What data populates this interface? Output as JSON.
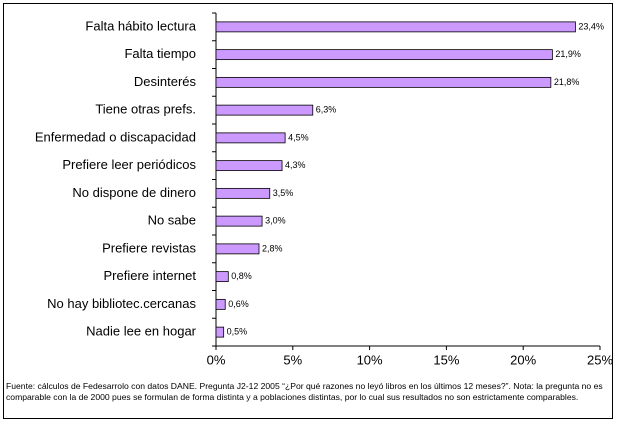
{
  "chart_data": {
    "type": "bar",
    "orientation": "horizontal",
    "categories": [
      "Falta hábito lectura",
      "Falta tiempo",
      "Desinterés",
      "Tiene otras prefs.",
      "Enfermedad o discapacidad",
      "Prefiere leer periódicos",
      "No dispone de dinero",
      "No sabe",
      "Prefiere revistas",
      "Prefiere internet",
      "No hay bibliotec.cercanas",
      "Nadie lee en hogar"
    ],
    "values": [
      23.4,
      21.9,
      21.8,
      6.3,
      4.5,
      4.3,
      3.5,
      3.0,
      2.8,
      0.8,
      0.6,
      0.5
    ],
    "value_labels": [
      "23,4%",
      "21,9%",
      "21,8%",
      "6,3%",
      "4,5%",
      "4,3%",
      "3,5%",
      "3,0%",
      "2,8%",
      "0,8%",
      "0,6%",
      "0,5%"
    ],
    "color": "#cc99ff",
    "xlim": [
      0,
      25
    ],
    "xticks": [
      {
        "value": 0,
        "label": "0%"
      },
      {
        "value": 5,
        "label": "5%"
      },
      {
        "value": 10,
        "label": "10%"
      },
      {
        "value": 15,
        "label": "15%"
      },
      {
        "value": 20,
        "label": "20%"
      },
      {
        "value": 25,
        "label": "25%"
      }
    ],
    "note": "Fuente: cálculos de Fedesarrolo con datos DANE. Pregunta J2-12 2005 “¿Por qué razones no leyó libros en los últimos 12 meses?”. Nota: la pregunta no es comparable con la de 2000 pues se formulan de forma distinta y a poblaciones distintas, por lo cual sus resultados no son estrictamente comparables."
  }
}
